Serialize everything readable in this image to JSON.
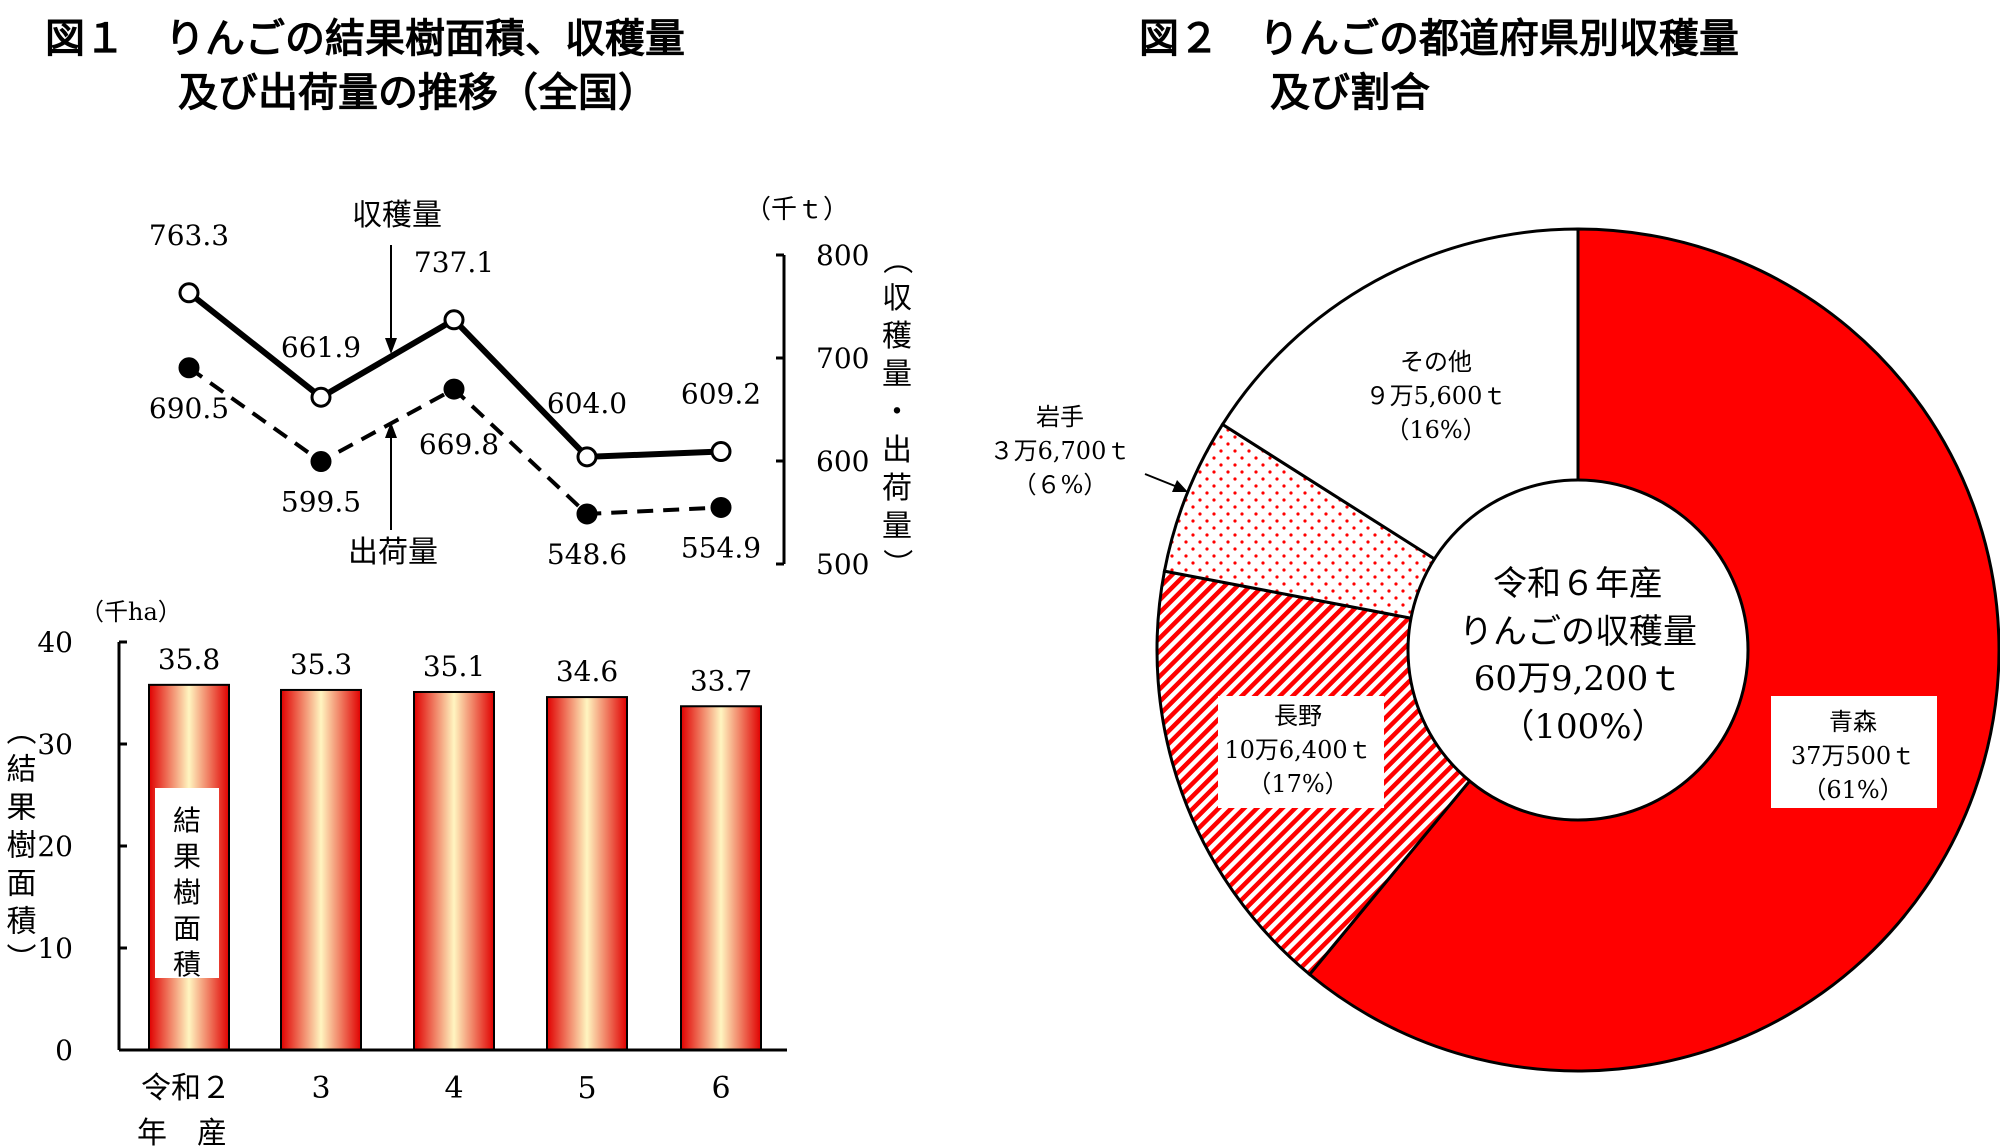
{
  "colors": {
    "accent": "#ff0000",
    "line": "#000000",
    "bar_highlight": "#fff5c0"
  },
  "chart_data": [
    {
      "type": "line",
      "title_line1": "図１　りんごの結果樹面積、収穫量",
      "title_line2": "及び出荷量の推移（全国）",
      "unit": "（千ｔ）",
      "ylabel": "（収穫量・出荷量）",
      "ylim": [
        500,
        800
      ],
      "yticks": [
        "800",
        "700",
        "600",
        "500"
      ],
      "categories": [
        "令和２年産",
        "3",
        "4",
        "5",
        "6"
      ],
      "series": [
        {
          "name": "収穫量",
          "style": "solid, open circles",
          "values": [
            763.3,
            661.9,
            737.1,
            604.0,
            609.2
          ],
          "labels": [
            "763.3",
            "661.9",
            "737.1",
            "604.0",
            "609.2"
          ]
        },
        {
          "name": "出荷量",
          "style": "dashed, filled circles",
          "values": [
            690.5,
            599.5,
            669.8,
            548.6,
            554.9
          ],
          "labels": [
            "690.5",
            "599.5",
            "669.8",
            "548.6",
            "554.9"
          ]
        }
      ]
    },
    {
      "type": "bar",
      "unit": "（千ha）",
      "ylabel": "（結果樹面積）",
      "series_label": "結果樹面積",
      "ylim": [
        0,
        40
      ],
      "yticks": [
        "40",
        "30",
        "20",
        "10",
        "0"
      ],
      "categories": [
        "令和２",
        "3",
        "4",
        "5",
        "6"
      ],
      "xlabel_suffix": "年　産",
      "values": [
        35.8,
        35.3,
        35.1,
        34.6,
        33.7
      ],
      "labels": [
        "35.8",
        "35.3",
        "35.1",
        "34.6",
        "33.7"
      ]
    },
    {
      "type": "pie",
      "title_line1": "図２　りんごの都道府県別収穫量",
      "title_line2": "及び割合",
      "center_text": [
        "令和６年産",
        "りんごの収穫量",
        "60万9,200ｔ",
        "（100%）"
      ],
      "slices": [
        {
          "name": "青森",
          "amount": "37万500ｔ",
          "percent_label": "（61%）",
          "value": 61,
          "fill": "solid"
        },
        {
          "name": "長野",
          "amount": "10万6,400ｔ",
          "percent_label": "（17%）",
          "value": 17,
          "fill": "hatch"
        },
        {
          "name": "岩手",
          "amount": "３万6,700ｔ",
          "percent_label": "（６%）",
          "value": 6,
          "fill": "dots"
        },
        {
          "name": "その他",
          "amount": "９万5,600ｔ",
          "percent_label": "（16%）",
          "value": 16,
          "fill": "none"
        }
      ]
    }
  ]
}
